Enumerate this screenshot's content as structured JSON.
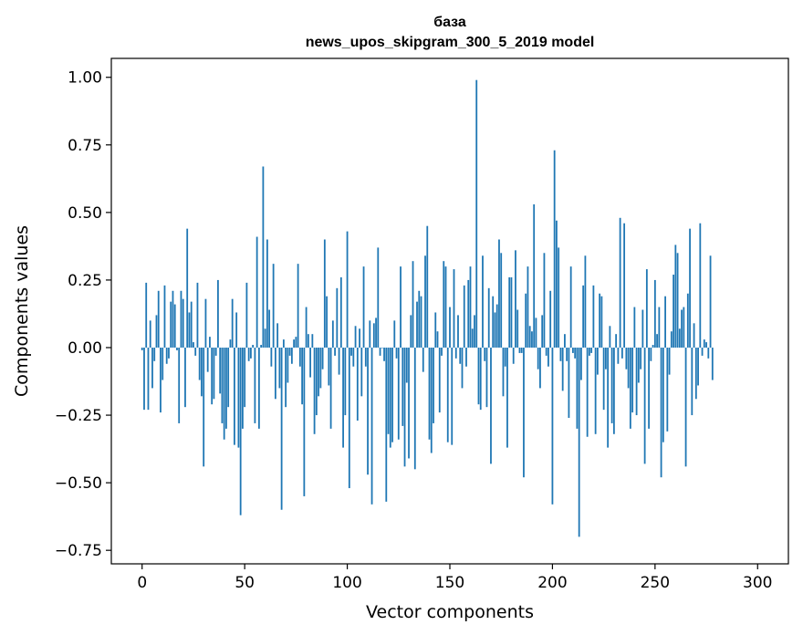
{
  "chart_data": {
    "type": "bar",
    "title": [
      "база",
      "news_upos_skipgram_300_5_2019 model"
    ],
    "xlabel": "Vector components",
    "ylabel": "Components values",
    "xlim": [
      -15,
      315
    ],
    "ylim": [
      -0.8,
      1.07
    ],
    "x_ticks": [
      0,
      50,
      100,
      150,
      200,
      250,
      300
    ],
    "y_ticks": [
      1.0,
      0.75,
      0.5,
      0.25,
      0.0,
      -0.25,
      -0.5,
      -0.75
    ],
    "x_tick_labels": [
      "0",
      "50",
      "100",
      "150",
      "200",
      "250",
      "300"
    ],
    "y_tick_labels": [
      "1.00",
      "0.75",
      "0.50",
      "0.25",
      "0.00",
      "−0.25",
      "−0.50",
      "−0.75"
    ],
    "bar_color": "#1f77b4",
    "values": [
      -0.01,
      -0.23,
      0.24,
      -0.23,
      0.1,
      -0.15,
      -0.05,
      0.12,
      0.21,
      -0.24,
      -0.12,
      0.23,
      -0.06,
      -0.04,
      0.17,
      0.21,
      0.16,
      -0.01,
      -0.28,
      0.21,
      0.18,
      -0.22,
      0.44,
      0.13,
      0.17,
      0.02,
      -0.03,
      0.24,
      -0.12,
      -0.18,
      -0.44,
      0.18,
      -0.09,
      0.04,
      -0.21,
      -0.19,
      -0.03,
      0.25,
      -0.17,
      -0.28,
      -0.34,
      -0.3,
      -0.22,
      0.03,
      0.18,
      -0.36,
      0.13,
      -0.37,
      -0.62,
      -0.3,
      -0.22,
      0.24,
      -0.05,
      -0.04,
      0.01,
      -0.28,
      0.41,
      -0.3,
      0.01,
      0.67,
      0.07,
      0.4,
      0.14,
      -0.07,
      0.31,
      -0.19,
      0.09,
      -0.15,
      -0.6,
      0.03,
      -0.22,
      -0.13,
      -0.03,
      -0.06,
      0.03,
      0.04,
      0.31,
      -0.07,
      -0.21,
      -0.55,
      0.15,
      0.05,
      -0.11,
      0.05,
      -0.32,
      -0.25,
      -0.18,
      -0.15,
      -0.08,
      0.4,
      0.19,
      -0.14,
      -0.3,
      0.1,
      -0.03,
      0.22,
      -0.1,
      0.26,
      -0.37,
      -0.25,
      0.43,
      -0.52,
      -0.03,
      -0.07,
      0.08,
      -0.27,
      0.07,
      -0.18,
      0.3,
      -0.07,
      -0.47,
      0.1,
      -0.58,
      0.09,
      0.11,
      0.37,
      -0.03,
      0.0,
      -0.05,
      -0.57,
      -0.32,
      -0.37,
      -0.35,
      0.1,
      -0.04,
      -0.34,
      0.3,
      -0.29,
      -0.44,
      -0.13,
      -0.41,
      0.12,
      0.32,
      -0.45,
      0.17,
      0.21,
      0.19,
      -0.09,
      0.34,
      0.45,
      -0.34,
      -0.39,
      -0.28,
      0.13,
      0.06,
      -0.24,
      -0.03,
      0.32,
      0.3,
      -0.35,
      0.15,
      -0.36,
      0.29,
      -0.04,
      0.12,
      -0.06,
      -0.15,
      0.23,
      -0.07,
      0.25,
      0.3,
      0.07,
      0.12,
      0.99,
      -0.21,
      -0.23,
      0.34,
      -0.05,
      -0.22,
      0.22,
      -0.43,
      0.19,
      0.13,
      0.16,
      0.4,
      0.35,
      -0.18,
      -0.07,
      -0.37,
      0.26,
      0.26,
      -0.06,
      0.36,
      0.14,
      -0.02,
      -0.02,
      -0.48,
      0.2,
      0.3,
      0.08,
      0.06,
      0.53,
      0.11,
      -0.08,
      -0.15,
      0.12,
      0.35,
      -0.03,
      -0.07,
      0.21,
      -0.58,
      0.73,
      0.47,
      0.37,
      -0.05,
      -0.16,
      0.05,
      -0.05,
      -0.26,
      0.3,
      -0.02,
      -0.04,
      -0.3,
      -0.7,
      -0.12,
      0.23,
      0.34,
      -0.33,
      -0.03,
      -0.02,
      0.23,
      -0.32,
      -0.1,
      0.2,
      0.19,
      -0.23,
      -0.08,
      -0.37,
      0.08,
      -0.28,
      -0.32,
      0.05,
      -0.06,
      0.48,
      -0.04,
      0.46,
      -0.08,
      -0.15,
      -0.3,
      -0.24,
      0.15,
      -0.25,
      -0.13,
      -0.08,
      0.14,
      -0.43,
      0.29,
      -0.3,
      -0.05,
      0.01,
      0.25,
      0.05,
      0.15,
      -0.48,
      -0.35,
      0.19,
      -0.31,
      -0.1,
      0.06,
      0.27,
      0.38,
      0.35,
      0.07,
      0.14,
      0.15,
      -0.44,
      0.2,
      0.44,
      -0.25,
      0.09,
      -0.19,
      -0.14,
      0.46,
      -0.03,
      0.03,
      0.02,
      -0.04,
      0.34,
      -0.12
    ]
  }
}
